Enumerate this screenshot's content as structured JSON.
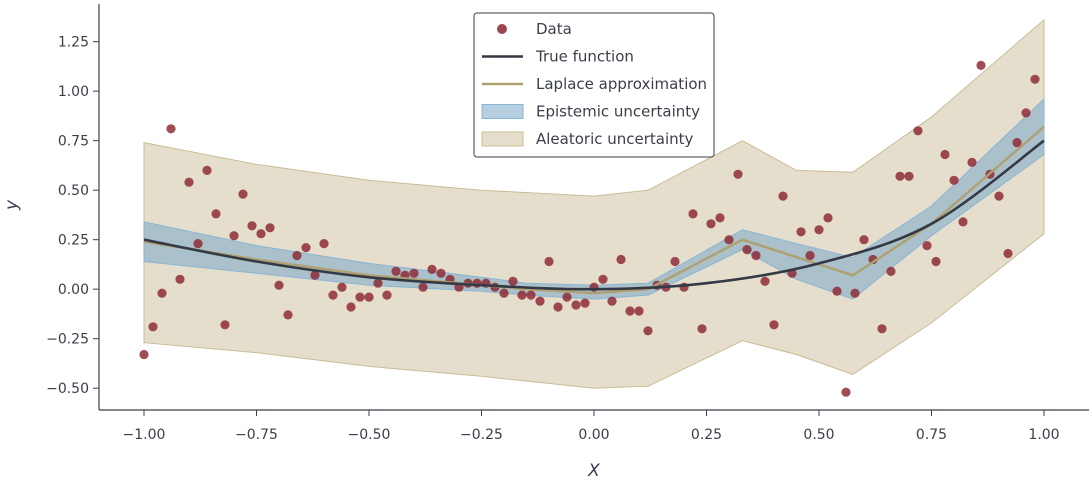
{
  "chart_data": {
    "type": "scatter",
    "xlabel": "X",
    "ylabel": "y",
    "xlim": [
      -1.1,
      1.1
    ],
    "ylim": [
      -0.61,
      1.44
    ],
    "xticks": [
      -1.0,
      -0.75,
      -0.5,
      -0.25,
      0.0,
      0.25,
      0.5,
      0.75,
      1.0
    ],
    "xtick_labels": [
      "−1.00",
      "−0.75",
      "−0.50",
      "−0.25",
      "0.00",
      "0.25",
      "0.50",
      "0.75",
      "1.00"
    ],
    "yticks": [
      -0.5,
      -0.25,
      0.0,
      0.25,
      0.5,
      0.75,
      1.0,
      1.25
    ],
    "ytick_labels": [
      "−0.50",
      "−0.25",
      "0.00",
      "0.25",
      "0.50",
      "0.75",
      "1.00",
      "1.25"
    ],
    "grid": false,
    "legend_position": "top-center",
    "colors": {
      "data": "#8b2631",
      "true_function": "#343a45",
      "laplace": "#b0a070",
      "epistemic_fill": "#7aa8c8",
      "epistemic_edge": "#8ab6d4",
      "aleatoric_fill": "#d7cdb1",
      "aleatoric_edge": "#c9bc95",
      "axis": "#3a3f4b"
    },
    "legend": [
      {
        "key": "data",
        "label": "Data"
      },
      {
        "key": "true_function",
        "label": "True function"
      },
      {
        "key": "laplace",
        "label": "Laplace approximation"
      },
      {
        "key": "epistemic",
        "label": "Epistemic uncertainty"
      },
      {
        "key": "aleatoric",
        "label": "Aleatoric uncertainty"
      }
    ],
    "data_points": [
      [
        -1.0,
        -0.33
      ],
      [
        -0.98,
        -0.19
      ],
      [
        -0.96,
        -0.02
      ],
      [
        -0.94,
        0.81
      ],
      [
        -0.92,
        0.05
      ],
      [
        -0.9,
        0.54
      ],
      [
        -0.88,
        0.23
      ],
      [
        -0.86,
        0.6
      ],
      [
        -0.84,
        0.38
      ],
      [
        -0.82,
        -0.18
      ],
      [
        -0.8,
        0.27
      ],
      [
        -0.78,
        0.48
      ],
      [
        -0.76,
        0.32
      ],
      [
        -0.74,
        0.28
      ],
      [
        -0.72,
        0.31
      ],
      [
        -0.7,
        0.02
      ],
      [
        -0.68,
        -0.13
      ],
      [
        -0.66,
        0.17
      ],
      [
        -0.64,
        0.21
      ],
      [
        -0.62,
        0.07
      ],
      [
        -0.6,
        0.23
      ],
      [
        -0.58,
        -0.03
      ],
      [
        -0.56,
        0.01
      ],
      [
        -0.54,
        -0.09
      ],
      [
        -0.52,
        -0.04
      ],
      [
        -0.5,
        -0.04
      ],
      [
        -0.48,
        0.03
      ],
      [
        -0.46,
        -0.03
      ],
      [
        -0.44,
        0.09
      ],
      [
        -0.42,
        0.07
      ],
      [
        -0.4,
        0.08
      ],
      [
        -0.38,
        0.01
      ],
      [
        -0.36,
        0.1
      ],
      [
        -0.34,
        0.08
      ],
      [
        -0.32,
        0.05
      ],
      [
        -0.3,
        0.01
      ],
      [
        -0.28,
        0.03
      ],
      [
        -0.26,
        0.03
      ],
      [
        -0.24,
        0.03
      ],
      [
        -0.22,
        0.01
      ],
      [
        -0.2,
        -0.02
      ],
      [
        -0.18,
        0.04
      ],
      [
        -0.16,
        -0.03
      ],
      [
        -0.14,
        -0.03
      ],
      [
        -0.12,
        -0.06
      ],
      [
        -0.1,
        0.14
      ],
      [
        -0.08,
        -0.09
      ],
      [
        -0.06,
        -0.04
      ],
      [
        -0.04,
        -0.08
      ],
      [
        -0.02,
        -0.07
      ],
      [
        0.0,
        0.01
      ],
      [
        0.02,
        0.05
      ],
      [
        0.04,
        -0.06
      ],
      [
        0.06,
        0.15
      ],
      [
        0.08,
        -0.11
      ],
      [
        0.1,
        -0.11
      ],
      [
        0.12,
        -0.21
      ],
      [
        0.14,
        0.02
      ],
      [
        0.16,
        0.01
      ],
      [
        0.18,
        0.14
      ],
      [
        0.2,
        0.01
      ],
      [
        0.22,
        0.38
      ],
      [
        0.24,
        -0.2
      ],
      [
        0.26,
        0.33
      ],
      [
        0.28,
        0.36
      ],
      [
        0.3,
        0.25
      ],
      [
        0.32,
        0.58
      ],
      [
        0.34,
        0.2
      ],
      [
        0.36,
        0.17
      ],
      [
        0.38,
        0.04
      ],
      [
        0.4,
        -0.18
      ],
      [
        0.42,
        0.47
      ],
      [
        0.44,
        0.08
      ],
      [
        0.46,
        0.29
      ],
      [
        0.48,
        0.17
      ],
      [
        0.5,
        0.3
      ],
      [
        0.52,
        0.36
      ],
      [
        0.54,
        -0.01
      ],
      [
        0.56,
        -0.52
      ],
      [
        0.58,
        -0.02
      ],
      [
        0.6,
        0.25
      ],
      [
        0.62,
        0.15
      ],
      [
        0.64,
        -0.2
      ],
      [
        0.66,
        0.09
      ],
      [
        0.68,
        0.57
      ],
      [
        0.7,
        0.57
      ],
      [
        0.72,
        0.8
      ],
      [
        0.74,
        0.22
      ],
      [
        0.76,
        0.14
      ],
      [
        0.78,
        0.68
      ],
      [
        0.8,
        0.55
      ],
      [
        0.82,
        0.34
      ],
      [
        0.84,
        0.64
      ],
      [
        0.86,
        1.13
      ],
      [
        0.88,
        0.58
      ],
      [
        0.9,
        0.47
      ],
      [
        0.92,
        0.18
      ],
      [
        0.94,
        0.74
      ],
      [
        0.96,
        0.89
      ],
      [
        0.98,
        1.06
      ]
    ],
    "true_function": [
      [
        -1.0,
        0.25
      ],
      [
        -0.75,
        0.14
      ],
      [
        -0.5,
        0.06
      ],
      [
        -0.25,
        0.02
      ],
      [
        0.0,
        0.0
      ],
      [
        0.25,
        0.03
      ],
      [
        0.5,
        0.13
      ],
      [
        0.75,
        0.33
      ],
      [
        1.0,
        0.75
      ]
    ],
    "laplace_mean": [
      [
        -1.0,
        0.24
      ],
      [
        -0.75,
        0.15
      ],
      [
        -0.5,
        0.07
      ],
      [
        -0.25,
        0.02
      ],
      [
        -0.15,
        -0.0
      ],
      [
        0.0,
        -0.02
      ],
      [
        0.12,
        0.0
      ],
      [
        0.33,
        0.25
      ],
      [
        0.575,
        0.07
      ],
      [
        0.75,
        0.33
      ],
      [
        1.0,
        0.82
      ]
    ],
    "epistemic_band": [
      [
        -1.0,
        0.14,
        0.34
      ],
      [
        -0.75,
        0.08,
        0.22
      ],
      [
        -0.5,
        0.02,
        0.13
      ],
      [
        -0.25,
        -0.01,
        0.06
      ],
      [
        -0.15,
        -0.03,
        0.03
      ],
      [
        0.0,
        -0.05,
        0.02
      ],
      [
        0.12,
        -0.03,
        0.03
      ],
      [
        0.33,
        0.2,
        0.3
      ],
      [
        0.45,
        0.05,
        0.23
      ],
      [
        0.575,
        -0.05,
        0.16
      ],
      [
        0.75,
        0.27,
        0.42
      ],
      [
        1.0,
        0.68,
        0.96
      ]
    ],
    "aleatoric_band": [
      [
        -1.0,
        -0.27,
        0.74
      ],
      [
        -0.75,
        -0.32,
        0.63
      ],
      [
        -0.5,
        -0.39,
        0.55
      ],
      [
        -0.25,
        -0.44,
        0.5
      ],
      [
        0.0,
        -0.5,
        0.47
      ],
      [
        0.12,
        -0.49,
        0.5
      ],
      [
        0.33,
        -0.26,
        0.75
      ],
      [
        0.45,
        -0.33,
        0.6
      ],
      [
        0.575,
        -0.43,
        0.59
      ],
      [
        0.75,
        -0.17,
        0.87
      ],
      [
        1.0,
        0.28,
        1.36
      ]
    ]
  }
}
